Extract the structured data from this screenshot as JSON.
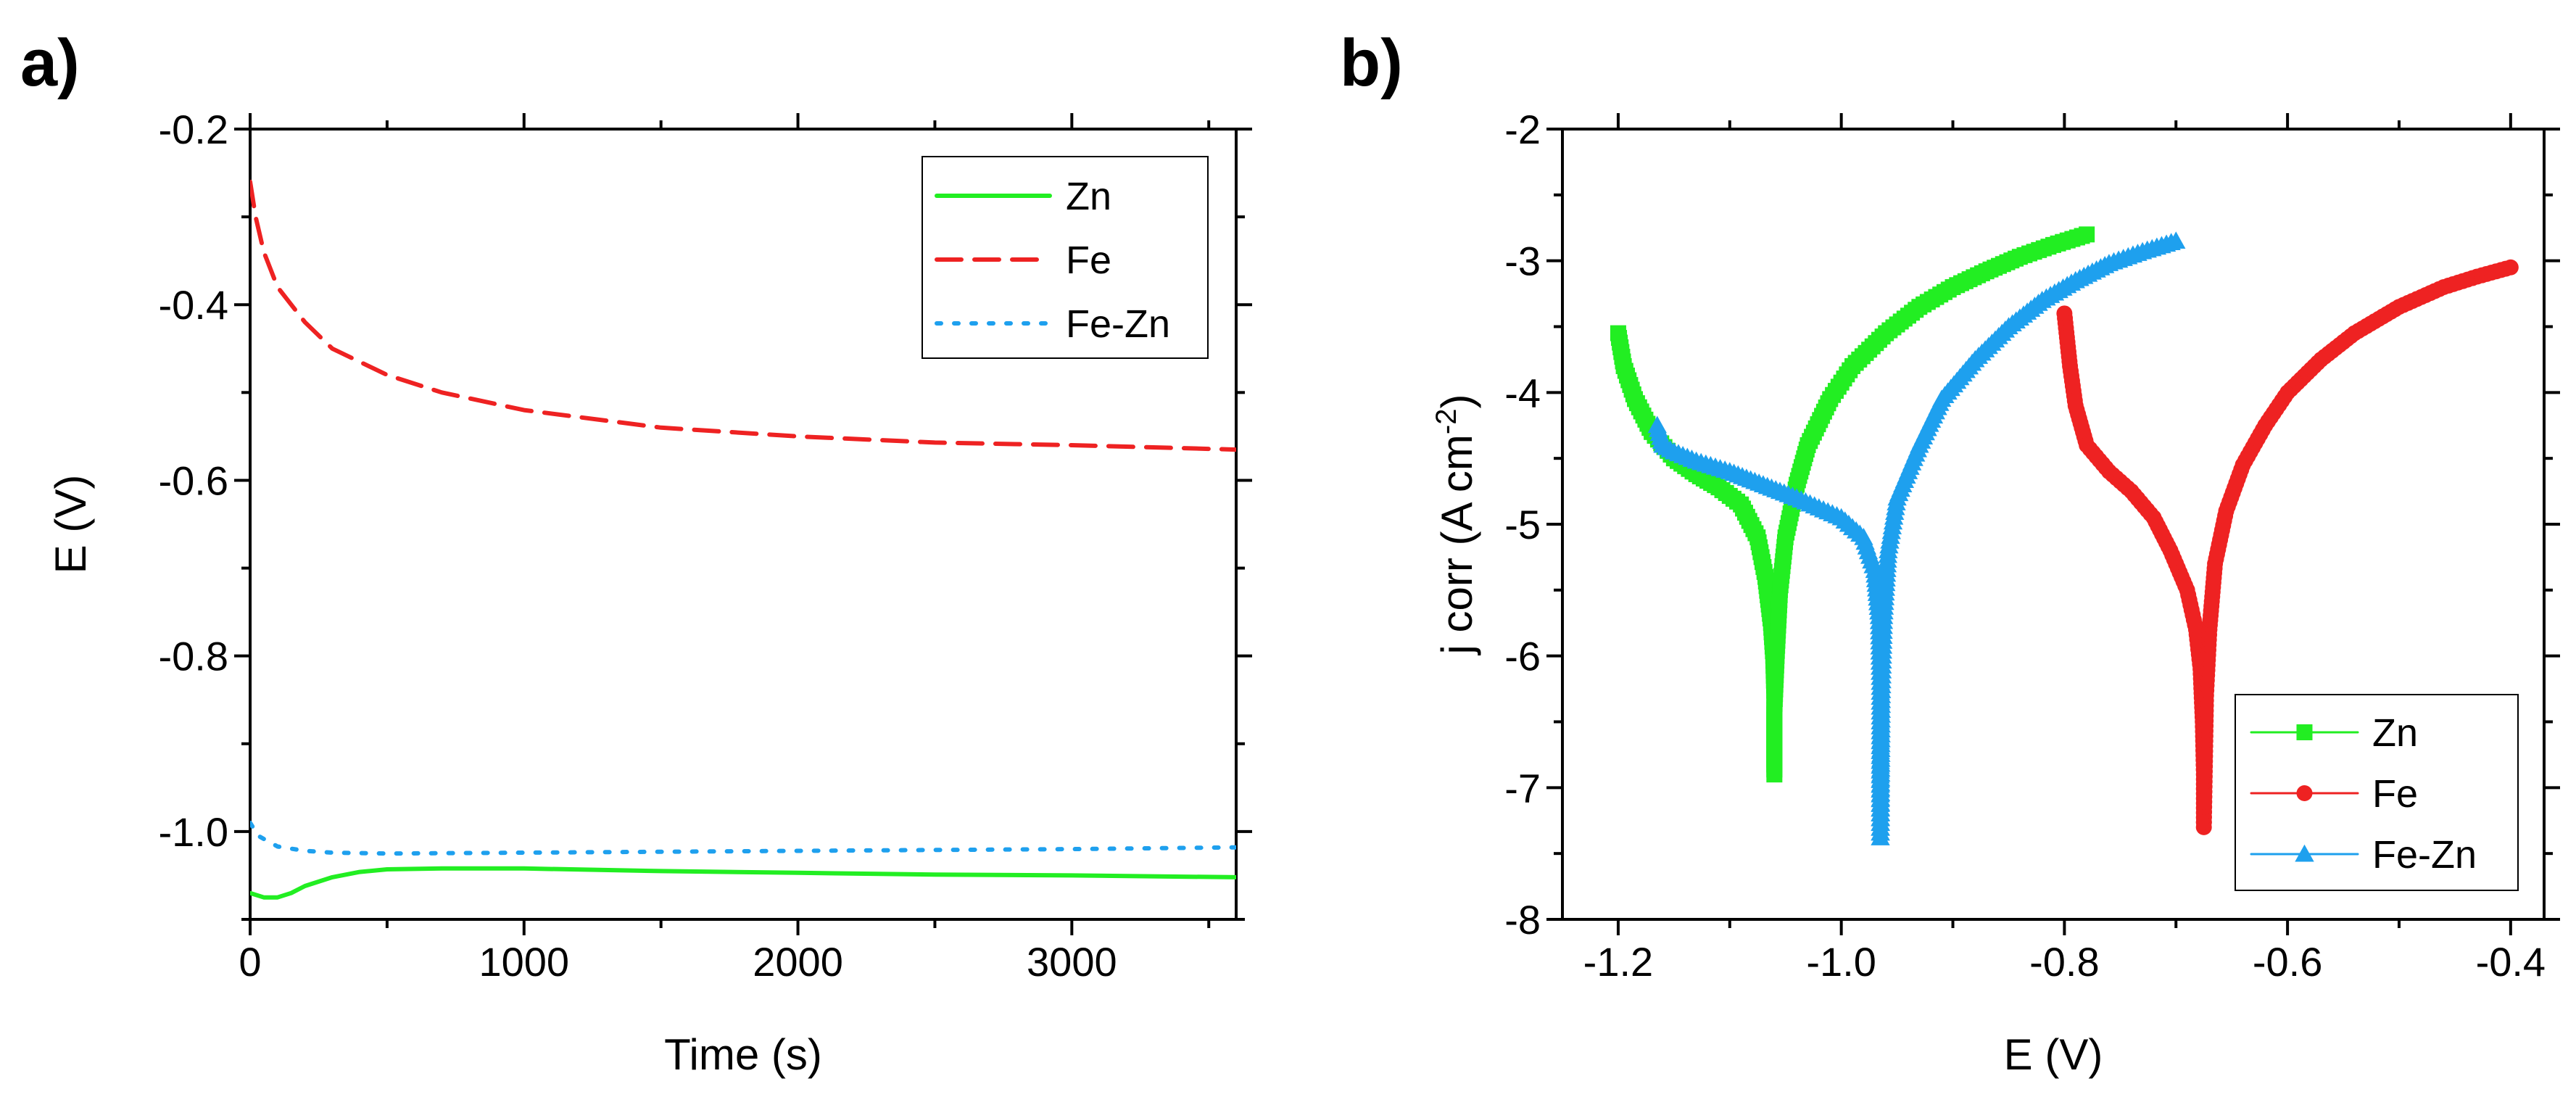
{
  "panels": [
    {
      "label": "a)"
    },
    {
      "label": "b)"
    }
  ],
  "chart_data": [
    {
      "type": "line",
      "panel": "a)",
      "xlabel": "Time (s)",
      "ylabel": "E (V)",
      "xlim": [
        0,
        3600
      ],
      "ylim": [
        -1.1,
        -0.2
      ],
      "xticks": [
        0,
        1000,
        2000,
        3000
      ],
      "xtick_labels": [
        "0",
        "1000",
        "2000",
        "3000"
      ],
      "yticks": [
        -1.0,
        -0.8,
        -0.6,
        -0.4,
        -0.2
      ],
      "ytick_labels": [
        "-1.0",
        "-0.8",
        "-0.6",
        "-0.4",
        "-0.2"
      ],
      "legend": "top-right",
      "series": [
        {
          "name": "Zn",
          "color": "#22ee22",
          "style": "solid",
          "x": [
            0,
            50,
            100,
            150,
            200,
            300,
            400,
            500,
            700,
            1000,
            1500,
            2000,
            2500,
            3000,
            3600
          ],
          "y": [
            -1.07,
            -1.075,
            -1.075,
            -1.07,
            -1.062,
            -1.052,
            -1.046,
            -1.043,
            -1.042,
            -1.042,
            -1.045,
            -1.047,
            -1.049,
            -1.05,
            -1.052
          ]
        },
        {
          "name": "Fe",
          "color": "#ee2222",
          "style": "dashed",
          "x": [
            0,
            20,
            50,
            100,
            200,
            300,
            500,
            700,
            1000,
            1500,
            2000,
            2500,
            3000,
            3600
          ],
          "y": [
            -0.26,
            -0.3,
            -0.34,
            -0.38,
            -0.42,
            -0.45,
            -0.48,
            -0.5,
            -0.52,
            -0.54,
            -0.55,
            -0.557,
            -0.56,
            -0.565
          ]
        },
        {
          "name": "Fe-Zn",
          "color": "#1ea0ee",
          "style": "dotted",
          "x": [
            0,
            30,
            100,
            200,
            300,
            500,
            1000,
            2000,
            3000,
            3600
          ],
          "y": [
            -0.99,
            -1.005,
            -1.017,
            -1.022,
            -1.024,
            -1.025,
            -1.024,
            -1.022,
            -1.02,
            -1.018
          ]
        }
      ]
    },
    {
      "type": "line",
      "panel": "b)",
      "xlabel": "E (V)",
      "ylabel": "j corr (A cm",
      "ylabel_sup": "-2",
      "ylabel_end": ")",
      "xlim": [
        -1.25,
        -0.37
      ],
      "ylim": [
        -8,
        -2
      ],
      "xticks": [
        -1.2,
        -1.0,
        -0.8,
        -0.6,
        -0.4
      ],
      "xtick_labels": [
        "-1.2",
        "-1.0",
        "-0.8",
        "-0.6",
        "-0.4"
      ],
      "yticks": [
        -8,
        -7,
        -6,
        -5,
        -4,
        -3,
        -2
      ],
      "ytick_labels": [
        "-8",
        "-7",
        "-6",
        "-5",
        "-4",
        "-3",
        "-2"
      ],
      "legend": "bottom-right",
      "series": [
        {
          "name": "Zn",
          "color": "#22ee22",
          "marker": "square",
          "x": [
            -1.2,
            -1.195,
            -1.185,
            -1.17,
            -1.15,
            -1.13,
            -1.11,
            -1.09,
            -1.075,
            -1.068,
            -1.063,
            -1.061,
            -1.06,
            -1.06,
            -1.06,
            -1.06,
            -1.058,
            -1.055,
            -1.05,
            -1.04,
            -1.03,
            -1.01,
            -0.99,
            -0.96,
            -0.93,
            -0.9,
            -0.87,
            -0.84,
            -0.81,
            -0.78
          ],
          "y": [
            -3.55,
            -3.8,
            -4.05,
            -4.3,
            -4.5,
            -4.62,
            -4.72,
            -4.85,
            -5.1,
            -5.4,
            -5.75,
            -6.0,
            -6.3,
            -6.6,
            -6.9,
            -6.4,
            -6.0,
            -5.5,
            -5.1,
            -4.7,
            -4.4,
            -4.05,
            -3.8,
            -3.55,
            -3.35,
            -3.2,
            -3.08,
            -2.97,
            -2.88,
            -2.8
          ]
        },
        {
          "name": "Fe",
          "color": "#ee2222",
          "marker": "circle",
          "x": [
            -0.8,
            -0.795,
            -0.79,
            -0.78,
            -0.76,
            -0.74,
            -0.72,
            -0.705,
            -0.69,
            -0.682,
            -0.678,
            -0.676,
            -0.675,
            -0.675,
            -0.674,
            -0.673,
            -0.67,
            -0.665,
            -0.655,
            -0.64,
            -0.62,
            -0.6,
            -0.57,
            -0.54,
            -0.5,
            -0.46,
            -0.43,
            -0.4
          ],
          "y": [
            -3.4,
            -3.8,
            -4.1,
            -4.4,
            -4.6,
            -4.75,
            -4.95,
            -5.2,
            -5.5,
            -5.8,
            -6.1,
            -6.5,
            -6.9,
            -7.3,
            -6.8,
            -6.3,
            -5.8,
            -5.3,
            -4.9,
            -4.55,
            -4.25,
            -4.0,
            -3.75,
            -3.55,
            -3.35,
            -3.2,
            -3.12,
            -3.05
          ]
        },
        {
          "name": "Fe-Zn",
          "color": "#1ea0ee",
          "marker": "triangle",
          "x": [
            -1.165,
            -1.16,
            -1.15,
            -1.13,
            -1.1,
            -1.07,
            -1.04,
            -1.0,
            -0.98,
            -0.97,
            -0.966,
            -0.965,
            -0.965,
            -0.965,
            -0.964,
            -0.962,
            -0.958,
            -0.95,
            -0.93,
            -0.91,
            -0.88,
            -0.85,
            -0.82,
            -0.79,
            -0.76,
            -0.73,
            -0.7
          ],
          "y": [
            -4.25,
            -4.4,
            -4.45,
            -4.52,
            -4.6,
            -4.7,
            -4.8,
            -4.95,
            -5.1,
            -5.35,
            -5.7,
            -6.2,
            -6.8,
            -7.38,
            -6.3,
            -5.7,
            -5.2,
            -4.8,
            -4.4,
            -4.05,
            -3.75,
            -3.5,
            -3.3,
            -3.15,
            -3.02,
            -2.93,
            -2.85
          ]
        }
      ]
    }
  ]
}
